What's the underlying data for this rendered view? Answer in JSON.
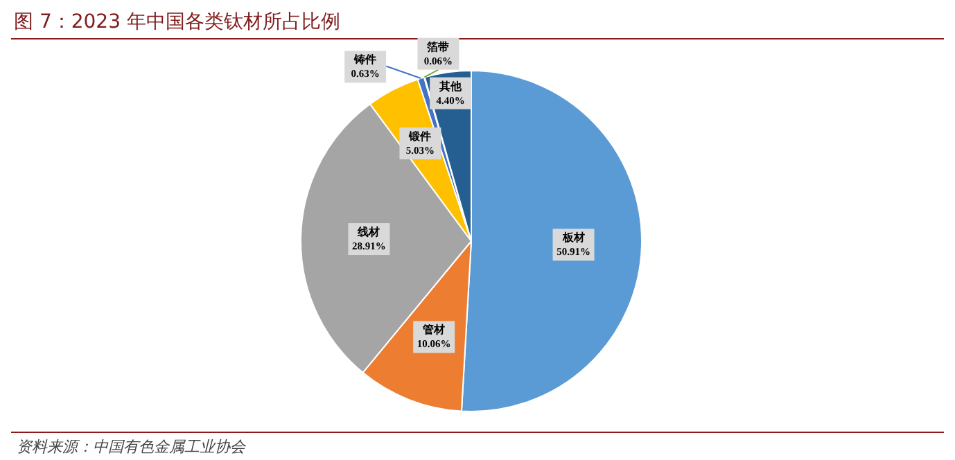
{
  "chart_data": {
    "type": "pie",
    "title": "图 7：2023 年中国各类钛材所占比例",
    "categories": [
      "板材",
      "管材",
      "线材",
      "锻件",
      "铸件",
      "箔带",
      "其他"
    ],
    "values": [
      50.91,
      10.06,
      28.91,
      5.03,
      0.63,
      0.06,
      4.4
    ],
    "value_labels": [
      "50.91%",
      "10.06%",
      "28.91%",
      "5.03%",
      "0.63%",
      "0.06%",
      "4.40%"
    ],
    "colors": [
      "#5b9bd5",
      "#ed7d31",
      "#a5a5a5",
      "#ffc000",
      "#4472c4",
      "#70ad47",
      "#255e91"
    ],
    "annotations": [
      "资料来源：中国有色金属工业协会"
    ]
  }
}
